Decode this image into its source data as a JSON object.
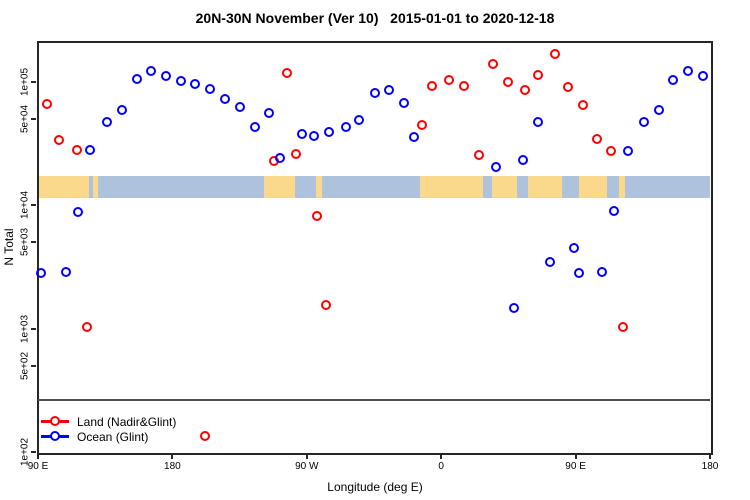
{
  "chart_data": {
    "type": "scatter",
    "title": "20N-30N November (Ver 10)   2015-01-01 to 2020-12-18",
    "xlabel": "Longitude (deg E)",
    "ylabel": "N Total",
    "x_axis": {
      "range_deg": [
        90,
        540
      ],
      "ticks_deg": [
        90,
        180,
        270,
        360,
        450,
        540
      ],
      "tick_labels": [
        "90 E",
        "180",
        "90 W",
        "0",
        "90 E",
        "180"
      ]
    },
    "y_axis": {
      "scale": "log",
      "range": [
        100,
        215000
      ],
      "ticks": [
        100000,
        50000,
        10000,
        5000,
        1000,
        500,
        100
      ],
      "tick_labels": [
        "1e+05",
        "5e+04",
        "1e+04",
        "5e+03",
        "1e+03",
        "5e+02",
        "1e+02"
      ]
    },
    "series": [
      {
        "name": "Land (Nadir&Glint)",
        "color": "#FF0000",
        "points": [
          [
            96,
            66000
          ],
          [
            104,
            34000
          ],
          [
            116,
            28000
          ],
          [
            123,
            1030
          ],
          [
            202,
            135
          ],
          [
            248,
            23000
          ],
          [
            257,
            118000
          ],
          [
            263,
            26000
          ],
          [
            277,
            8200
          ],
          [
            283,
            1550
          ],
          [
            347,
            45000
          ],
          [
            354,
            93000
          ],
          [
            365,
            104000
          ],
          [
            375,
            93000
          ],
          [
            385,
            25600
          ],
          [
            395,
            140000
          ],
          [
            405,
            100000
          ],
          [
            416,
            86000
          ],
          [
            425,
            114000
          ],
          [
            436,
            169000
          ],
          [
            445,
            91000
          ],
          [
            455,
            65000
          ],
          [
            464,
            34500
          ],
          [
            474,
            27600
          ],
          [
            482,
            1030
          ]
        ]
      },
      {
        "name": "Ocean (Glint)",
        "color": "#0000FF",
        "points": [
          [
            92,
            2800
          ],
          [
            109,
            2900
          ],
          [
            117,
            8800
          ],
          [
            125,
            28000
          ],
          [
            136,
            47400
          ],
          [
            146,
            59000
          ],
          [
            156,
            106000
          ],
          [
            166,
            123000
          ],
          [
            176,
            112000
          ],
          [
            186,
            102000
          ],
          [
            195,
            96000
          ],
          [
            205,
            88000
          ],
          [
            215,
            73000
          ],
          [
            225,
            63000
          ],
          [
            235,
            43000
          ],
          [
            245,
            56000
          ],
          [
            252,
            24000
          ],
          [
            267,
            38000
          ],
          [
            275,
            36500
          ],
          [
            285,
            39000
          ],
          [
            296,
            43000
          ],
          [
            305,
            49000
          ],
          [
            316,
            81500
          ],
          [
            325,
            86000
          ],
          [
            335,
            67500
          ],
          [
            342,
            36000
          ],
          [
            397,
            20500
          ],
          [
            409,
            1470
          ],
          [
            415,
            23300
          ],
          [
            425,
            47400
          ],
          [
            433,
            3500
          ],
          [
            449,
            4500
          ],
          [
            452,
            2800
          ],
          [
            468,
            2900
          ],
          [
            476,
            9000
          ],
          [
            485,
            27600
          ],
          [
            496,
            47400
          ],
          [
            506,
            59000
          ],
          [
            515,
            104000
          ],
          [
            525,
            123000
          ],
          [
            535,
            112000
          ]
        ]
      }
    ],
    "map_band": {
      "description": "world map strip for 20N-30N latitude band",
      "value_top": 17300,
      "value_bottom": 11500,
      "ocean_color": "#AEC2DD",
      "land_color": "#FAD88C",
      "land_segments_deg": [
        [
          90,
          124
        ],
        [
          126.5,
          130.5
        ],
        [
          241.5,
          262
        ],
        [
          276,
          280
        ],
        [
          346,
          388
        ],
        [
          394,
          411
        ],
        [
          418,
          441
        ],
        [
          452,
          471
        ],
        [
          479,
          483
        ]
      ]
    },
    "legend": {
      "position": "bottom-left",
      "entries": [
        "Land (Nadir&Glint)",
        "Ocean (Glint)"
      ]
    }
  }
}
